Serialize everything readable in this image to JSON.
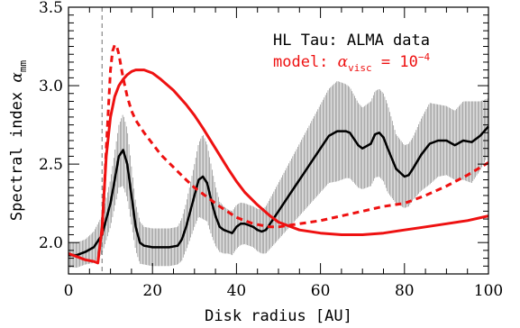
{
  "chart_data": {
    "type": "line",
    "xlabel": "Disk radius [AU]",
    "ylabel": {
      "main": "Spectral index",
      "symbol": "α",
      "subscript": "mm"
    },
    "xlim": [
      0,
      100
    ],
    "ylim": [
      1.8,
      3.5
    ],
    "xticks": [
      0,
      20,
      40,
      60,
      80,
      100
    ],
    "xtick_labels": [
      "0",
      "20",
      "40",
      "60",
      "80",
      "100"
    ],
    "yticks": [
      2.0,
      2.5,
      3.0,
      3.5
    ],
    "ytick_labels": [
      "2.0",
      "2.5",
      "3.0",
      "3.5"
    ],
    "grid": false,
    "legend": {
      "placement": "top-right",
      "data_label": "HL Tau: ALMA data",
      "model_prefix": "model: ",
      "model_symbol": "α",
      "model_subscript": "visc",
      "model_eq": " = 10",
      "model_exponent": "−4"
    },
    "vline": {
      "x": 8,
      "style": "dashed",
      "color": "#888888"
    },
    "series": [
      {
        "style": "solid",
        "color": "#000000",
        "width": 2.5,
        "x": [
          0,
          2,
          4,
          6,
          8,
          10,
          11,
          12,
          13,
          14,
          15,
          16,
          17,
          18,
          20,
          22,
          24,
          26,
          27,
          28,
          30,
          31,
          32,
          33,
          34,
          35,
          36,
          37,
          38,
          39,
          40,
          41,
          42,
          43,
          44,
          45,
          46,
          47,
          48,
          50,
          52,
          54,
          56,
          58,
          60,
          62,
          64,
          66,
          67,
          68,
          69,
          70,
          72,
          73,
          74,
          75,
          76,
          78,
          80,
          81,
          82,
          84,
          86,
          88,
          90,
          92,
          94,
          96,
          98,
          100
        ],
        "y": [
          1.92,
          1.92,
          1.94,
          1.97,
          2.05,
          2.25,
          2.4,
          2.55,
          2.59,
          2.5,
          2.3,
          2.1,
          2.0,
          1.98,
          1.97,
          1.97,
          1.97,
          1.98,
          2.02,
          2.1,
          2.3,
          2.4,
          2.42,
          2.38,
          2.27,
          2.17,
          2.1,
          2.08,
          2.07,
          2.06,
          2.1,
          2.12,
          2.12,
          2.11,
          2.1,
          2.08,
          2.07,
          2.08,
          2.12,
          2.2,
          2.28,
          2.36,
          2.44,
          2.52,
          2.6,
          2.68,
          2.71,
          2.71,
          2.7,
          2.66,
          2.62,
          2.6,
          2.63,
          2.69,
          2.7,
          2.67,
          2.6,
          2.47,
          2.42,
          2.43,
          2.47,
          2.56,
          2.63,
          2.65,
          2.65,
          2.62,
          2.65,
          2.64,
          2.68,
          2.74
        ]
      },
      {
        "style": "solid",
        "color": "#ee1111",
        "width": 3,
        "x": [
          0,
          2,
          4,
          6,
          7,
          8,
          9,
          10,
          11,
          12,
          13,
          14,
          15,
          16,
          17,
          18,
          20,
          22,
          25,
          28,
          30,
          32,
          35,
          38,
          40,
          42,
          45,
          48,
          50,
          55,
          60,
          65,
          70,
          75,
          80,
          85,
          90,
          95,
          100
        ],
        "y": [
          1.93,
          1.91,
          1.89,
          1.88,
          1.87,
          2.1,
          2.55,
          2.8,
          2.93,
          3.0,
          3.04,
          3.07,
          3.09,
          3.1,
          3.1,
          3.1,
          3.08,
          3.04,
          2.97,
          2.88,
          2.81,
          2.73,
          2.6,
          2.47,
          2.39,
          2.32,
          2.24,
          2.17,
          2.13,
          2.08,
          2.06,
          2.05,
          2.05,
          2.06,
          2.08,
          2.1,
          2.12,
          2.14,
          2.17
        ]
      },
      {
        "style": "dashed",
        "color": "#ee1111",
        "width": 3,
        "x": [
          8,
          9,
          10,
          10.5,
          11,
          11.5,
          12,
          13,
          14,
          15,
          16,
          18,
          20,
          22,
          25,
          28,
          30,
          33,
          36,
          40,
          44,
          48,
          50,
          55,
          60,
          65,
          70,
          75,
          80,
          85,
          90,
          95,
          100
        ],
        "y": [
          2.05,
          2.6,
          3.1,
          3.22,
          3.26,
          3.25,
          3.2,
          3.05,
          2.93,
          2.84,
          2.78,
          2.7,
          2.63,
          2.56,
          2.48,
          2.4,
          2.35,
          2.29,
          2.23,
          2.16,
          2.12,
          2.1,
          2.1,
          2.12,
          2.14,
          2.17,
          2.2,
          2.23,
          2.25,
          2.3,
          2.36,
          2.43,
          2.51
        ]
      }
    ],
    "errorband": {
      "color": "#888888",
      "x": [
        0,
        2,
        4,
        6,
        8,
        10,
        12,
        13,
        14,
        16,
        18,
        20,
        22,
        24,
        26,
        28,
        30,
        32,
        34,
        36,
        38,
        40,
        42,
        44,
        46,
        48,
        50,
        52,
        54,
        56,
        58,
        60,
        62,
        64,
        66,
        68,
        70,
        72,
        74,
        76,
        78,
        80,
        82,
        84,
        86,
        88,
        90,
        92,
        94,
        96,
        98,
        100
      ],
      "halfwidth": [
        0.08,
        0.08,
        0.08,
        0.1,
        0.12,
        0.15,
        0.2,
        0.23,
        0.22,
        0.15,
        0.12,
        0.12,
        0.12,
        0.12,
        0.12,
        0.15,
        0.2,
        0.27,
        0.22,
        0.16,
        0.14,
        0.14,
        0.13,
        0.13,
        0.14,
        0.16,
        0.18,
        0.2,
        0.22,
        0.24,
        0.26,
        0.28,
        0.3,
        0.32,
        0.3,
        0.28,
        0.26,
        0.27,
        0.28,
        0.28,
        0.22,
        0.2,
        0.2,
        0.23,
        0.26,
        0.23,
        0.22,
        0.22,
        0.25,
        0.26,
        0.22,
        0.18
      ]
    }
  }
}
